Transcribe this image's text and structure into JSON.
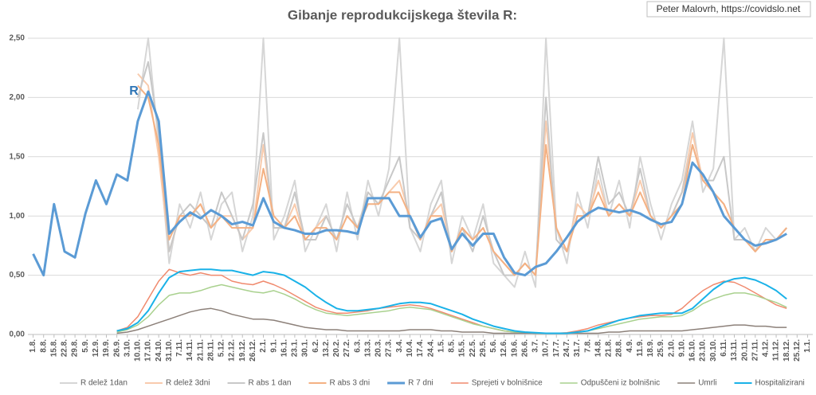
{
  "chart_data": {
    "type": "line",
    "title": "Gibanje reprodukcijskega števila R:",
    "credit": "Peter Malovrh, https://covidslo.net",
    "annotation": "R",
    "categories": [
      "1.8.",
      "8.8.",
      "15.8.",
      "22.8.",
      "29.8.",
      "5.9.",
      "12.9.",
      "19.9.",
      "26.9.",
      "3.10.",
      "10.10.",
      "17.10.",
      "24.10.",
      "31.10.",
      "7.11.",
      "14.11.",
      "21.11.",
      "28.11.",
      "5.12.",
      "12.12.",
      "19.12.",
      "26.12.",
      "2.1.",
      "9.1.",
      "16.1.",
      "23.1.",
      "30.1.",
      "6.2.",
      "13.2.",
      "20.2.",
      "27.2.",
      "6.3.",
      "13.3.",
      "20.3.",
      "27.3.",
      "3.4.",
      "10.4.",
      "17.4.",
      "24.4.",
      "1.5.",
      "8.5.",
      "15.5.",
      "22.5.",
      "29.5.",
      "5.6.",
      "12.6.",
      "19.6.",
      "26.6.",
      "3.7.",
      "10.7.",
      "17.7.",
      "24.7.",
      "31.7.",
      "7.8.",
      "14.8.",
      "21.8.",
      "28.8.",
      "4.9.",
      "11.9.",
      "18.9.",
      "25.9.",
      "2.10.",
      "9.10.",
      "16.10.",
      "23.10.",
      "30.10.",
      "6.11.",
      "13.11.",
      "20.11.",
      "27.11.",
      "4.12.",
      "11.12.",
      "18.12.",
      "25.12.",
      "1.1."
    ],
    "ylim": [
      0,
      2.5
    ],
    "yticks": [
      {
        "value": 0,
        "label": "0,00"
      },
      {
        "value": 0.5,
        "label": "0,50"
      },
      {
        "value": 1,
        "label": "1,00"
      },
      {
        "value": 1.5,
        "label": "1,50"
      },
      {
        "value": 2,
        "label": "2,00"
      },
      {
        "value": 2.5,
        "label": "2,50"
      }
    ],
    "grid": true,
    "legend": "bottom",
    "series": [
      {
        "name": "R delež 1dan",
        "color": "#d6d6d6",
        "width": 2,
        "values": [
          null,
          null,
          null,
          null,
          null,
          null,
          null,
          null,
          null,
          null,
          1.9,
          2.5,
          1.6,
          0.6,
          1.1,
          0.9,
          1.2,
          0.8,
          1.1,
          1.2,
          0.7,
          1.0,
          2.5,
          0.8,
          1.0,
          1.3,
          0.7,
          0.9,
          1.1,
          0.7,
          1.2,
          0.8,
          1.3,
          1.0,
          1.4,
          2.5,
          0.9,
          0.7,
          1.1,
          1.3,
          0.6,
          1.0,
          0.8,
          1.1,
          0.6,
          0.5,
          0.4,
          0.7,
          0.4,
          2.5,
          0.9,
          0.6,
          1.2,
          0.9,
          1.4,
          1.0,
          1.3,
          0.9,
          1.5,
          1.1,
          0.8,
          1.1,
          1.3,
          1.8,
          1.2,
          1.4,
          2.5,
          0.8,
          0.9,
          0.7,
          0.9,
          0.8,
          0.9,
          null,
          null
        ]
      },
      {
        "name": "R delež 3dni",
        "color": "#f8cbad",
        "width": 2,
        "values": [
          null,
          null,
          null,
          null,
          null,
          null,
          null,
          null,
          null,
          null,
          2.2,
          2.1,
          1.5,
          0.7,
          1.0,
          1.0,
          1.1,
          0.9,
          1.0,
          1.0,
          0.8,
          0.9,
          1.6,
          0.9,
          0.9,
          1.1,
          0.8,
          0.9,
          1.0,
          0.8,
          1.0,
          0.9,
          1.2,
          1.1,
          1.2,
          1.3,
          1.0,
          0.8,
          1.0,
          1.1,
          0.7,
          0.9,
          0.8,
          0.9,
          0.7,
          0.6,
          0.5,
          0.6,
          0.5,
          1.8,
          0.9,
          0.7,
          1.1,
          1.0,
          1.3,
          1.0,
          1.1,
          1.0,
          1.3,
          1.0,
          0.9,
          1.0,
          1.2,
          1.7,
          1.3,
          1.2,
          1.1,
          0.9,
          0.8,
          0.7,
          0.8,
          0.8,
          0.9,
          null,
          null
        ]
      },
      {
        "name": "R abs 1 dan",
        "color": "#c8c8c8",
        "width": 2,
        "values": [
          null,
          null,
          null,
          null,
          null,
          null,
          null,
          null,
          null,
          null,
          2.0,
          2.3,
          1.7,
          0.7,
          1.0,
          1.1,
          1.0,
          0.9,
          1.2,
          1.0,
          0.8,
          1.1,
          1.7,
          0.9,
          0.9,
          1.2,
          0.8,
          0.8,
          1.0,
          0.8,
          1.1,
          0.9,
          1.2,
          1.1,
          1.3,
          1.5,
          0.9,
          0.8,
          1.0,
          1.2,
          0.7,
          0.9,
          0.7,
          1.0,
          0.7,
          0.5,
          0.5,
          0.6,
          0.5,
          2.0,
          0.8,
          0.7,
          1.0,
          1.0,
          1.5,
          1.1,
          1.2,
          1.0,
          1.4,
          1.0,
          0.9,
          1.0,
          1.2,
          1.6,
          1.3,
          1.3,
          1.5,
          0.8,
          0.8,
          0.7,
          0.8,
          0.8,
          0.9,
          null,
          null
        ]
      },
      {
        "name": "R abs 3 dni",
        "color": "#f4b183",
        "width": 2,
        "values": [
          null,
          null,
          null,
          null,
          null,
          null,
          null,
          null,
          null,
          null,
          2.1,
          2.0,
          1.6,
          0.8,
          1.0,
          1.0,
          1.1,
          0.9,
          1.0,
          0.9,
          0.9,
          0.9,
          1.4,
          1.0,
          0.9,
          1.0,
          0.8,
          0.9,
          0.9,
          0.8,
          1.0,
          0.9,
          1.1,
          1.1,
          1.2,
          1.2,
          1.0,
          0.8,
          1.0,
          1.0,
          0.7,
          0.9,
          0.8,
          0.9,
          0.7,
          0.6,
          0.5,
          0.6,
          0.5,
          1.6,
          0.9,
          0.7,
          1.0,
          1.0,
          1.2,
          1.0,
          1.1,
          1.0,
          1.2,
          1.0,
          0.9,
          1.0,
          1.1,
          1.6,
          1.3,
          1.2,
          1.1,
          0.9,
          0.8,
          0.7,
          0.8,
          0.8,
          0.9,
          null,
          null
        ]
      },
      {
        "name": "R 7 dni",
        "color": "#5b9bd5",
        "width": 3,
        "values": [
          0.68,
          0.5,
          1.1,
          0.7,
          0.65,
          1.02,
          1.3,
          1.1,
          1.35,
          1.3,
          1.8,
          2.05,
          1.8,
          0.85,
          0.95,
          1.03,
          0.98,
          1.05,
          1.0,
          0.93,
          0.95,
          0.92,
          1.15,
          0.95,
          0.9,
          0.88,
          0.85,
          0.85,
          0.88,
          0.88,
          0.87,
          0.85,
          1.15,
          1.15,
          1.15,
          1.0,
          1.0,
          0.82,
          0.95,
          0.98,
          0.72,
          0.85,
          0.75,
          0.85,
          0.85,
          0.65,
          0.52,
          0.5,
          0.57,
          0.6,
          0.7,
          0.82,
          0.95,
          1.02,
          1.07,
          1.05,
          1.03,
          1.05,
          1.02,
          0.97,
          0.93,
          0.95,
          1.1,
          1.45,
          1.35,
          1.2,
          1.0,
          0.9,
          0.8,
          0.75,
          0.77,
          0.8,
          0.85,
          null,
          null
        ]
      },
      {
        "name": "Sprejeti v bolnišnice",
        "color": "#f08a6e",
        "width": 1.5,
        "values": [
          null,
          null,
          null,
          null,
          null,
          null,
          null,
          null,
          0.03,
          0.06,
          0.15,
          0.3,
          0.45,
          0.55,
          0.52,
          0.5,
          0.52,
          0.5,
          0.5,
          0.45,
          0.43,
          0.42,
          0.45,
          0.42,
          0.38,
          0.33,
          0.28,
          0.23,
          0.2,
          0.18,
          0.18,
          0.19,
          0.2,
          0.22,
          0.23,
          0.24,
          0.25,
          0.24,
          0.22,
          0.19,
          0.16,
          0.13,
          0.1,
          0.07,
          0.05,
          0.03,
          0.02,
          0.015,
          0.01,
          0.01,
          0.01,
          0.015,
          0.03,
          0.05,
          0.08,
          0.1,
          0.12,
          0.14,
          0.15,
          0.16,
          0.16,
          0.17,
          0.22,
          0.3,
          0.37,
          0.42,
          0.45,
          0.44,
          0.4,
          0.35,
          0.3,
          0.25,
          0.22,
          null,
          null
        ]
      },
      {
        "name": "Odpuščeni iz bolnišnic",
        "color": "#a9d18e",
        "width": 1.5,
        "values": [
          null,
          null,
          null,
          null,
          null,
          null,
          null,
          null,
          0.02,
          0.04,
          0.08,
          0.15,
          0.25,
          0.33,
          0.35,
          0.35,
          0.37,
          0.4,
          0.42,
          0.4,
          0.38,
          0.36,
          0.35,
          0.37,
          0.34,
          0.3,
          0.25,
          0.21,
          0.18,
          0.17,
          0.16,
          0.17,
          0.18,
          0.19,
          0.2,
          0.22,
          0.23,
          0.22,
          0.21,
          0.18,
          0.15,
          0.12,
          0.09,
          0.07,
          0.05,
          0.03,
          0.02,
          0.015,
          0.01,
          0.01,
          0.01,
          0.01,
          0.02,
          0.03,
          0.05,
          0.07,
          0.09,
          0.11,
          0.13,
          0.14,
          0.15,
          0.15,
          0.16,
          0.2,
          0.26,
          0.3,
          0.33,
          0.35,
          0.35,
          0.33,
          0.3,
          0.27,
          0.23,
          null,
          null
        ]
      },
      {
        "name": "Umrli",
        "color": "#8c8079",
        "width": 1.5,
        "values": [
          null,
          null,
          null,
          null,
          null,
          null,
          null,
          null,
          0.01,
          0.02,
          0.04,
          0.07,
          0.1,
          0.13,
          0.16,
          0.19,
          0.21,
          0.22,
          0.2,
          0.17,
          0.15,
          0.13,
          0.13,
          0.12,
          0.1,
          0.08,
          0.06,
          0.05,
          0.04,
          0.04,
          0.03,
          0.03,
          0.03,
          0.03,
          0.03,
          0.03,
          0.04,
          0.04,
          0.04,
          0.03,
          0.03,
          0.02,
          0.02,
          0.02,
          0.01,
          0.01,
          0.01,
          0.01,
          0.01,
          0.01,
          0.01,
          0.01,
          0.01,
          0.01,
          0.01,
          0.02,
          0.02,
          0.03,
          0.03,
          0.03,
          0.03,
          0.03,
          0.03,
          0.04,
          0.05,
          0.06,
          0.07,
          0.08,
          0.08,
          0.07,
          0.07,
          0.06,
          0.06,
          null,
          null
        ]
      },
      {
        "name": "Hospitalizirani",
        "color": "#1ab2e8",
        "width": 2,
        "values": [
          null,
          null,
          null,
          null,
          null,
          null,
          null,
          null,
          0.03,
          0.05,
          0.1,
          0.2,
          0.35,
          0.48,
          0.53,
          0.54,
          0.55,
          0.55,
          0.54,
          0.54,
          0.52,
          0.5,
          0.53,
          0.52,
          0.5,
          0.45,
          0.4,
          0.33,
          0.27,
          0.22,
          0.2,
          0.2,
          0.21,
          0.22,
          0.24,
          0.26,
          0.27,
          0.27,
          0.26,
          0.23,
          0.2,
          0.17,
          0.13,
          0.1,
          0.07,
          0.05,
          0.03,
          0.02,
          0.015,
          0.01,
          0.01,
          0.01,
          0.02,
          0.03,
          0.06,
          0.09,
          0.12,
          0.14,
          0.16,
          0.17,
          0.18,
          0.18,
          0.18,
          0.22,
          0.3,
          0.38,
          0.44,
          0.47,
          0.48,
          0.46,
          0.42,
          0.37,
          0.3,
          null,
          null
        ]
      }
    ]
  }
}
